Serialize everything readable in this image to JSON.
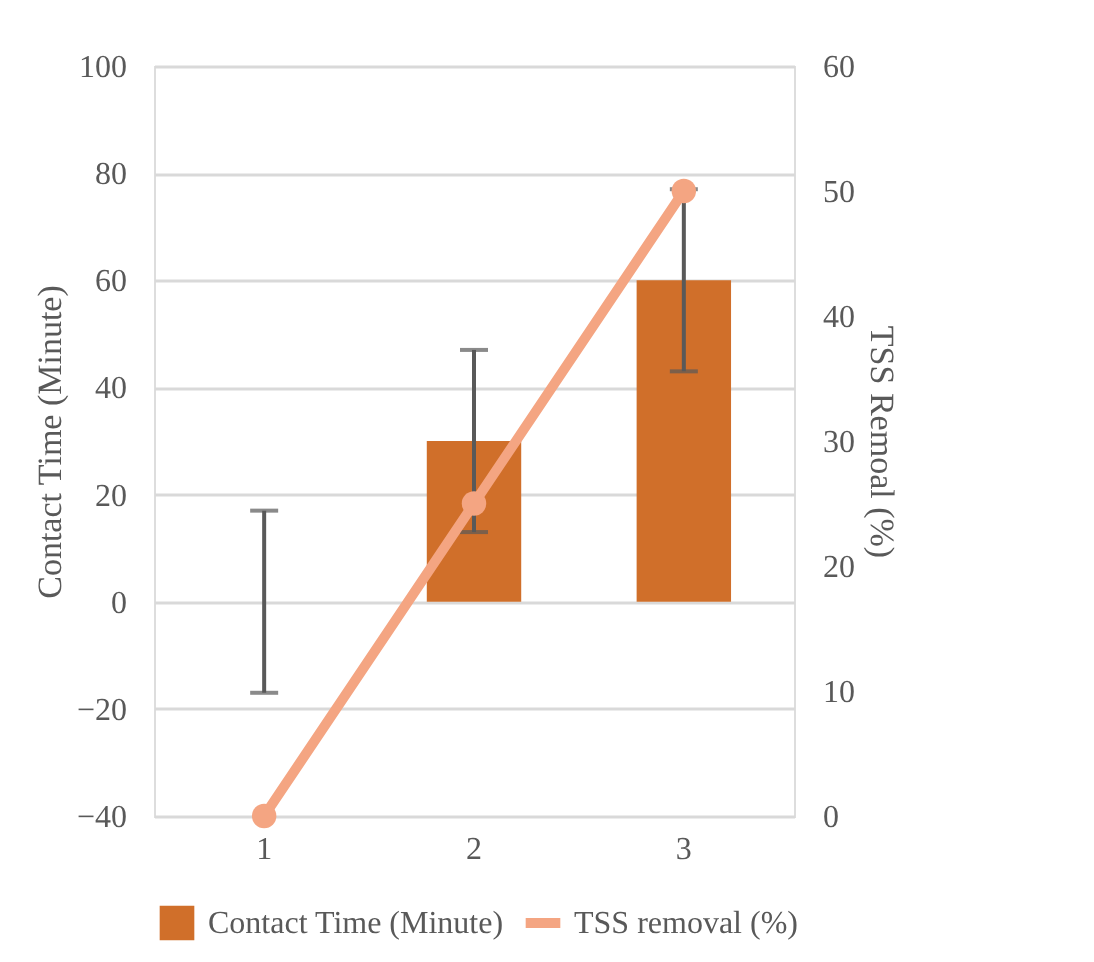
{
  "chart_data": {
    "type": "bar",
    "categories": [
      "1",
      "2",
      "3"
    ],
    "series": [
      {
        "name": "Contact Time (Minute)",
        "color": "#d06f2a",
        "values": [
          0,
          30,
          60
        ],
        "errors": [
          17,
          17,
          17
        ]
      },
      {
        "name": "TSS removal (%)",
        "type": "line",
        "color": "#f4a582",
        "values": [
          0,
          25,
          50
        ],
        "axis": "y2",
        "marker": "circle"
      }
    ],
    "ylabel": "Contact Time (Minute)",
    "y2label": "TSS Remoal (%)",
    "ylim": [
      -40,
      100
    ],
    "yticks": [
      -40,
      -20,
      0,
      20,
      40,
      60,
      80,
      100
    ],
    "y2lim": [
      0,
      60
    ],
    "y2ticks": [
      0,
      10,
      20,
      30,
      40,
      50,
      60
    ],
    "grid": "y",
    "legend": "bottom"
  }
}
